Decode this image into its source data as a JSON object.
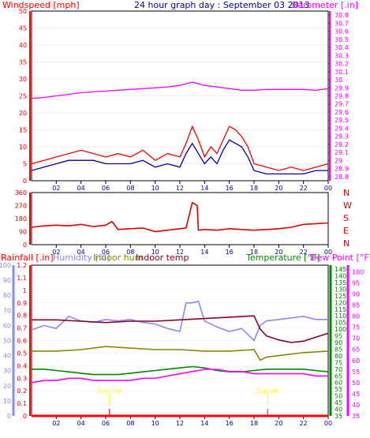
{
  "header": {
    "windspeed_label": "Windspeed [mph]",
    "title": "24 hour graph day : September 03 2013",
    "barometer_label": "Barometer [.in]"
  },
  "colors": {
    "wind": "#ff0000",
    "wind_avg": "#0000aa",
    "barometer": "#ff00ff",
    "direction": "#dd0000",
    "humidity": "#8888ff",
    "indoor_hum": "#888800",
    "indoor_temp": "#880022",
    "temperature": "#008800",
    "dew_point": "#ff00ff",
    "rain": "#ff0000",
    "grid": "#000000",
    "background": "#ffffff"
  },
  "bottom_header": {
    "rainfall_label": "Rainfall [.in]",
    "humidity_label": "Humidity [%]",
    "indoor_hum_label": "Indoor hum",
    "indoor_temp_label": "Indoor temp",
    "temperature_label": "Temperature [°F]",
    "dew_point_label": "Dew Point [°F]"
  },
  "chart_data": [
    {
      "type": "line",
      "title": "24 hour graph day : September 03 2013",
      "x_ticks": [
        "02",
        "04",
        "06",
        "08",
        "10",
        "12",
        "14",
        "16",
        "18",
        "20",
        "22",
        "00"
      ],
      "left_axis": {
        "label": "Windspeed [mph]",
        "ticks": [
          "50",
          "45",
          "40",
          "35",
          "30",
          "25",
          "20",
          "15",
          "10",
          "5",
          "0"
        ],
        "ylim": [
          0,
          50
        ]
      },
      "right_axis": {
        "label": "Barometer [.in]",
        "ticks": [
          "30.8",
          "30.7",
          "30.6",
          "30.5",
          "30.4",
          "30.3",
          "30.2",
          "30.1",
          "30",
          "29.9",
          "29.8",
          "29.7",
          "29.6",
          "29.5",
          "29.4",
          "29.3",
          "29.2",
          "29.1",
          "29",
          "28.9",
          "28.8"
        ],
        "ylim": [
          28.75,
          30.85
        ]
      },
      "series": [
        {
          "name": "Windspeed [mph]",
          "axis": "left",
          "color": "#ff0000",
          "x": [
            0,
            1,
            2,
            3,
            4,
            5,
            6,
            7,
            8,
            9,
            10,
            11,
            12,
            12.5,
            13,
            13.5,
            14,
            14.5,
            15,
            15.5,
            16,
            16.5,
            17,
            17.5,
            18,
            19,
            20,
            21,
            22,
            23,
            24
          ],
          "y": [
            5,
            6,
            7,
            8,
            9,
            8,
            7,
            8,
            7,
            9,
            6,
            8,
            7,
            11,
            16,
            12,
            7,
            10,
            8,
            12,
            16,
            15,
            13,
            10,
            5,
            4,
            3,
            4,
            3,
            4,
            5
          ]
        },
        {
          "name": "Wind average",
          "axis": "left",
          "color": "#0000aa",
          "x": [
            0,
            1,
            2,
            3,
            4,
            5,
            6,
            7,
            8,
            9,
            10,
            11,
            12,
            12.5,
            13,
            13.5,
            14,
            14.5,
            15,
            15.5,
            16,
            16.5,
            17,
            17.5,
            18,
            19,
            20,
            21,
            22,
            23,
            24
          ],
          "y": [
            3,
            4,
            5,
            6,
            6,
            6,
            5,
            5,
            5,
            6,
            4,
            5,
            4,
            8,
            11,
            8,
            5,
            7,
            5,
            9,
            12,
            11,
            10,
            7,
            3,
            2,
            2,
            2,
            2,
            3,
            3
          ]
        },
        {
          "name": "Barometer [.in]",
          "axis": "right",
          "color": "#ff00ff",
          "x": [
            0,
            1,
            2,
            3,
            4,
            5,
            6,
            7,
            8,
            9,
            10,
            11,
            12,
            13,
            14,
            15,
            16,
            17,
            18,
            19,
            20,
            21,
            22,
            23,
            24
          ],
          "y": [
            29.77,
            29.78,
            29.8,
            29.82,
            29.84,
            29.85,
            29.86,
            29.87,
            29.88,
            29.89,
            29.9,
            29.91,
            29.93,
            29.97,
            29.93,
            29.91,
            29.89,
            29.87,
            29.87,
            29.88,
            29.88,
            29.88,
            29.88,
            29.87,
            29.89
          ]
        }
      ]
    },
    {
      "type": "line",
      "title": "",
      "x_ticks": [
        "02",
        "04",
        "06",
        "08",
        "10",
        "12",
        "14",
        "16",
        "18",
        "20",
        "22",
        "00"
      ],
      "left_axis": {
        "ticks": [
          "360",
          "270",
          "180",
          "90",
          "0"
        ],
        "ylim": [
          0,
          360
        ]
      },
      "right_axis": {
        "ticks": [
          "N",
          "W",
          "S",
          "E",
          "N"
        ]
      },
      "series": [
        {
          "name": "Wind direction",
          "color": "#dd0000",
          "x": [
            0,
            1,
            2,
            3,
            4,
            5,
            6,
            6.5,
            7,
            8,
            9,
            10,
            11,
            12,
            12.5,
            13,
            13.4,
            13.5,
            14,
            15,
            16,
            17,
            18,
            19,
            20,
            21,
            22,
            23,
            24
          ],
          "y": [
            120,
            130,
            135,
            130,
            140,
            125,
            135,
            160,
            105,
            110,
            115,
            90,
            100,
            110,
            115,
            290,
            270,
            100,
            105,
            100,
            110,
            105,
            100,
            105,
            110,
            120,
            140,
            145,
            150
          ]
        }
      ]
    },
    {
      "type": "line",
      "title": "",
      "x_ticks": [
        "02",
        "04",
        "06",
        "08",
        "10",
        "12",
        "14",
        "16",
        "18",
        "20",
        "22",
        "00"
      ],
      "axes": [
        {
          "label": "Rainfall [.in]",
          "ticks": [
            "1.2",
            "1.1",
            "1",
            "0.9",
            "0.8",
            "0.7",
            "0.6",
            "0.5",
            "0.4",
            "0.3",
            "0.2",
            "0.1",
            "0"
          ],
          "ylim": [
            0,
            1.2
          ]
        },
        {
          "label": "Humidity [%]",
          "ticks": [
            "100",
            "90",
            "80",
            "70",
            "60",
            "50",
            "40",
            "30",
            "20",
            "10",
            "0"
          ],
          "ylim": [
            0,
            100
          ]
        },
        {
          "label": "Temperature [°F]",
          "ticks": [
            "145",
            "140",
            "135",
            "130",
            "125",
            "120",
            "115",
            "110",
            "105",
            "100",
            "95",
            "90",
            "85",
            "80",
            "75",
            "70",
            "65",
            "60",
            "55",
            "50",
            "45",
            "40",
            "35"
          ],
          "ylim": [
            35,
            148
          ]
        },
        {
          "label": "Dew Point [°F]",
          "ticks": [
            "100",
            "95",
            "90",
            "85",
            "80",
            "75",
            "70",
            "65",
            "60",
            "55",
            "50",
            "45",
            "40",
            "35"
          ],
          "ylim": [
            35,
            103
          ]
        }
      ],
      "annotations": [
        "Sunrise",
        "Sunset"
      ],
      "series": [
        {
          "name": "Humidity [%]",
          "axis": "Humidity [%]",
          "color": "#8888ff",
          "x": [
            0,
            1,
            2,
            3,
            4,
            5,
            6,
            7,
            8,
            9,
            10,
            11,
            12,
            12.5,
            13,
            13.5,
            14,
            15,
            16,
            17,
            18,
            18.5,
            19,
            20,
            21,
            22,
            23,
            24
          ],
          "y": [
            57,
            60,
            58,
            66,
            63,
            62,
            64,
            63,
            64,
            62,
            61,
            58,
            56,
            75,
            75,
            76,
            63,
            59,
            56,
            58,
            50,
            60,
            63,
            64,
            65,
            66,
            64,
            64
          ]
        },
        {
          "name": "Indoor hum",
          "axis": "Humidity [%]",
          "color": "#888800",
          "x": [
            0,
            2,
            4,
            6,
            8,
            10,
            12,
            14,
            16,
            18,
            18.5,
            19,
            20,
            22,
            24
          ],
          "y": [
            43,
            43,
            44,
            46,
            45,
            44,
            44,
            43,
            43,
            44,
            37,
            39,
            40,
            42,
            43
          ]
        },
        {
          "name": "Indoor temp",
          "axis": "Temperature [°F]",
          "color": "#880022",
          "x": [
            0,
            2,
            4,
            6,
            8,
            10,
            12,
            14,
            16,
            18,
            18.5,
            19,
            20,
            21,
            22,
            23,
            24
          ],
          "y": [
            107,
            107,
            106,
            105,
            106,
            106,
            107,
            108,
            109,
            110,
            100,
            95,
            92,
            90,
            91,
            94,
            97
          ]
        },
        {
          "name": "Temperature [°F]",
          "axis": "Temperature [°F]",
          "color": "#008800",
          "x": [
            0,
            1,
            2,
            3,
            4,
            5,
            6,
            7,
            8,
            9,
            10,
            11,
            12,
            13,
            14,
            15,
            16,
            17,
            18,
            19,
            20,
            21,
            22,
            23,
            24
          ],
          "y": [
            70,
            70,
            69,
            68,
            67,
            66,
            66,
            66,
            67,
            68,
            69,
            70,
            71,
            72,
            71,
            69,
            68,
            68,
            69,
            70,
            70,
            70,
            70,
            69,
            68
          ]
        },
        {
          "name": "Dew Point [°F]",
          "axis": "Dew Point [°F]",
          "color": "#ff00ff",
          "x": [
            0,
            1,
            2,
            3,
            4,
            5,
            6,
            7,
            8,
            9,
            10,
            11,
            12,
            13,
            14,
            15,
            16,
            17,
            18,
            19,
            20,
            21,
            22,
            23,
            24
          ],
          "y": [
            50,
            51,
            51,
            52,
            52,
            51,
            51,
            51,
            51,
            52,
            52,
            53,
            54,
            55,
            56,
            56,
            55,
            55,
            54,
            54,
            54,
            54,
            54,
            53,
            53
          ]
        },
        {
          "name": "Rainfall [.in]",
          "axis": "Rainfall [.in]",
          "color": "#ff0000",
          "x": [
            0,
            24
          ],
          "y": [
            0,
            0
          ]
        }
      ]
    }
  ]
}
